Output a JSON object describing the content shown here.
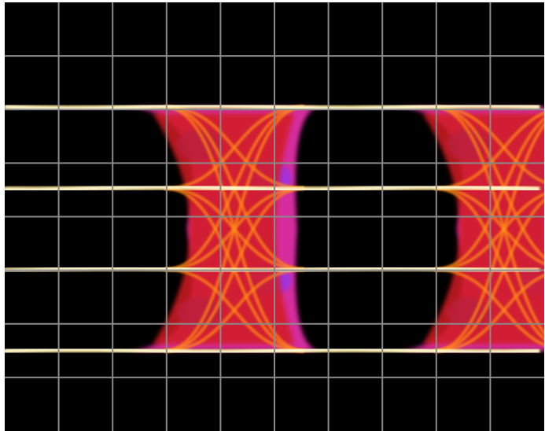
{
  "chart_data": {
    "type": "eye-diagram",
    "title": "",
    "xlabel": "",
    "ylabel": "",
    "unit_intervals_shown": 2,
    "grid": {
      "visible": true,
      "horizontal_divisions": 10,
      "vertical_divisions": 8,
      "color": "#8a8a8a"
    },
    "levels": [
      {
        "name": "level-3",
        "value": 1.0
      },
      {
        "name": "level-2",
        "value": 0.333
      },
      {
        "name": "level-1",
        "value": -0.333
      },
      {
        "name": "level-0",
        "value": -1.0
      }
    ],
    "crossings_ui": [
      0.68,
      1.08,
      1.68,
      2.08
    ],
    "sub_eyes_per_ui": 3,
    "palette": {
      "background": "#000000",
      "trace_core": "#fff8d0",
      "trace_hot": "#ffd24a",
      "orange": "#ff8a18",
      "red": "#d21c24",
      "magenta": "#ee32b0",
      "violet": "#9a34e6",
      "blue": "#3a38d8"
    }
  }
}
